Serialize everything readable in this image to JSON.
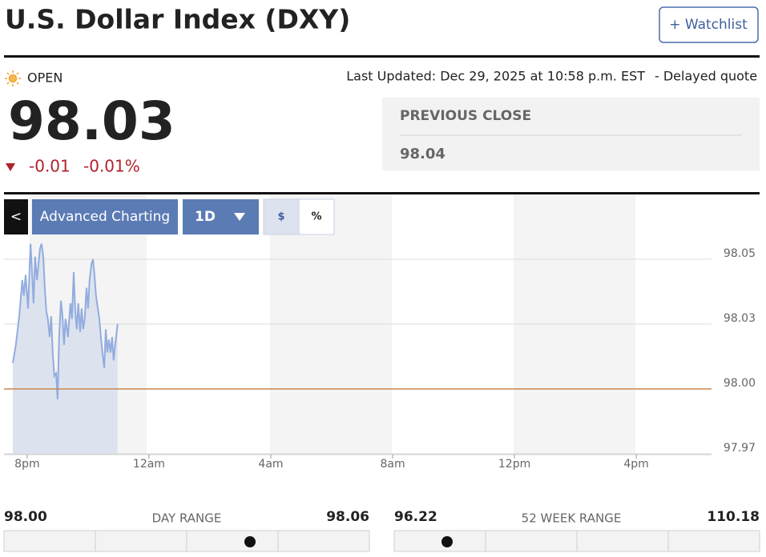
{
  "header": {
    "title": "U.S. Dollar Index (DXY)",
    "watchlist_button": "+ Watchlist"
  },
  "quote": {
    "status": "OPEN",
    "last_updated": "Last Updated: Dec 29, 2025 at 10:58 p.m. EST",
    "delayed": "- Delayed quote",
    "price": "98.03",
    "change": "-0.01",
    "change_percent": "-0.01%",
    "previous_close_label": "PREVIOUS CLOSE",
    "previous_close": "98.04"
  },
  "toolbar": {
    "back": "<",
    "advanced": "Advanced Charting",
    "interval": "1D",
    "dollar": "$",
    "percent": "%"
  },
  "chart_data": {
    "type": "line",
    "color": "#92acdf",
    "fill": "#dde3ee",
    "x": [
      19.53,
      19.63,
      19.74,
      19.84,
      19.89,
      19.95,
      20.03,
      20.11,
      20.16,
      20.21,
      20.26,
      20.32,
      20.37,
      20.42,
      20.47,
      20.53,
      20.58,
      20.63,
      20.68,
      20.74,
      20.79,
      20.84,
      20.89,
      20.95,
      21.0,
      21.05,
      21.11,
      21.16,
      21.21,
      21.26,
      21.34,
      21.42,
      21.47,
      21.53,
      21.58,
      21.63,
      21.68,
      21.74,
      21.79,
      21.84,
      21.89,
      21.95,
      22.0,
      22.05,
      22.11,
      22.16,
      22.21,
      22.26,
      22.32,
      22.37,
      22.42,
      22.47,
      22.53,
      22.58,
      22.63,
      22.68,
      22.74,
      22.79,
      22.84,
      22.89,
      22.97
    ],
    "values": [
      98.01,
      98.017,
      98.028,
      98.042,
      98.036,
      98.044,
      98.031,
      98.056,
      98.045,
      98.033,
      98.051,
      98.042,
      98.048,
      98.054,
      98.056,
      98.051,
      98.039,
      98.03,
      98.027,
      98.02,
      98.028,
      98.014,
      98.005,
      98.006,
      97.996,
      98.02,
      98.034,
      98.028,
      98.017,
      98.027,
      98.02,
      98.033,
      98.027,
      98.045,
      98.03,
      98.023,
      98.033,
      98.022,
      98.031,
      98.023,
      98.027,
      98.039,
      98.031,
      98.042,
      98.048,
      98.05,
      98.044,
      98.036,
      98.031,
      98.027,
      98.02,
      98.014,
      98.008,
      98.023,
      98.014,
      98.019,
      98.014,
      98.02,
      98.011,
      98.017,
      98.025
    ],
    "xlim": [
      19.24,
      42.47
    ],
    "ylim": [
      97.975,
      98.0583
    ],
    "xticks": [
      {
        "value": 20,
        "label": "8pm"
      },
      {
        "value": 24,
        "label": "12am"
      },
      {
        "value": 28,
        "label": "4am"
      },
      {
        "value": 32,
        "label": "8am"
      },
      {
        "value": 36,
        "label": "12pm"
      },
      {
        "value": 40,
        "label": "4pm"
      }
    ],
    "yticks": [
      {
        "value": 98.05,
        "label": "98.05"
      },
      {
        "value": 98.025,
        "label": "98.03"
      },
      {
        "value": 98.0,
        "label": "98.00"
      },
      {
        "value": 97.975,
        "label": "97.97"
      }
    ],
    "reference_line": 98.0,
    "reference_color": "#c8864a",
    "grid": true
  },
  "ranges": {
    "day": {
      "low": "98.00",
      "label": "DAY RANGE",
      "high": "98.06"
    },
    "week52": {
      "low": "96.22",
      "label": "52 WEEK RANGE",
      "high": "110.18"
    }
  }
}
